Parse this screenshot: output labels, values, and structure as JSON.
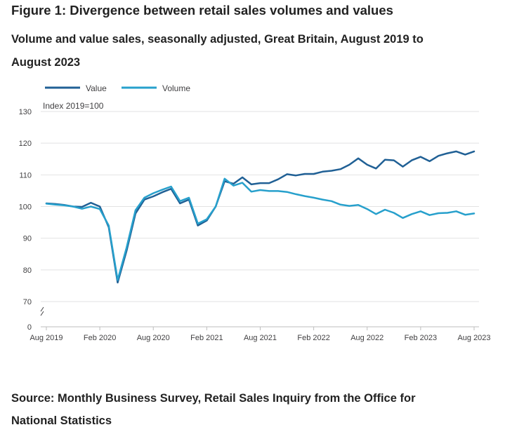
{
  "figure": {
    "title": "Figure 1: Divergence between retail sales volumes and values",
    "subtitle": "Volume and value sales, seasonally adjusted, Great Britain, August 2019 to August 2023",
    "source": "Source: Monthly Business Survey, Retail Sales Inquiry from the Office for National Statistics"
  },
  "chart_data": {
    "type": "line",
    "title": "Figure 1: Divergence between retail sales volumes and values",
    "subtitle": "Volume and value sales, seasonally adjusted, Great Britain, August 2019 to August 2023",
    "ylabel": "Index 2019=100",
    "ylim": [
      0,
      130
    ],
    "y_axis_break": [
      0,
      65
    ],
    "y_ticks": [
      0,
      70,
      80,
      90,
      100,
      110,
      120,
      130
    ],
    "grid": true,
    "legend_position": "top-left",
    "x": [
      "Aug 2019",
      "Sep 2019",
      "Oct 2019",
      "Nov 2019",
      "Dec 2019",
      "Jan 2020",
      "Feb 2020",
      "Mar 2020",
      "Apr 2020",
      "May 2020",
      "Jun 2020",
      "Jul 2020",
      "Aug 2020",
      "Sep 2020",
      "Oct 2020",
      "Nov 2020",
      "Dec 2020",
      "Jan 2021",
      "Feb 2021",
      "Mar 2021",
      "Apr 2021",
      "May 2021",
      "Jun 2021",
      "Jul 2021",
      "Aug 2021",
      "Sep 2021",
      "Oct 2021",
      "Nov 2021",
      "Dec 2021",
      "Jan 2022",
      "Feb 2022",
      "Mar 2022",
      "Apr 2022",
      "May 2022",
      "Jun 2022",
      "Jul 2022",
      "Aug 2022",
      "Sep 2022",
      "Oct 2022",
      "Nov 2022",
      "Dec 2022",
      "Jan 2023",
      "Feb 2023",
      "Mar 2023",
      "Apr 2023",
      "May 2023",
      "Jun 2023",
      "Jul 2023",
      "Aug 2023"
    ],
    "x_tick_labels": [
      "Aug 2019",
      "Feb 2020",
      "Aug 2020",
      "Feb 2021",
      "Aug 2021",
      "Feb 2022",
      "Aug 2022",
      "Feb 2023",
      "Aug 2023"
    ],
    "series": [
      {
        "name": "Value",
        "color": "#206095",
        "values": [
          101.0,
          100.8,
          100.5,
          100.0,
          99.9,
          101.2,
          100.0,
          93.5,
          76.0,
          86.0,
          97.8,
          102.2,
          103.2,
          104.5,
          105.6,
          101.0,
          102.2,
          94.0,
          95.6,
          100.0,
          108.0,
          107.2,
          109.2,
          107.0,
          107.4,
          107.4,
          108.6,
          110.2,
          109.8,
          110.3,
          110.3,
          111.0,
          111.3,
          111.8,
          113.2,
          115.2,
          113.2,
          112.0,
          114.8,
          114.6,
          112.6,
          114.6,
          115.7,
          114.3,
          116.0,
          116.8,
          117.4,
          116.4,
          117.4
        ]
      },
      {
        "name": "Volume",
        "color": "#27a0cc",
        "values": [
          100.9,
          100.6,
          100.4,
          100.0,
          99.3,
          100.0,
          99.2,
          94.0,
          76.8,
          87.0,
          98.8,
          102.8,
          104.2,
          105.3,
          106.3,
          101.7,
          102.8,
          94.6,
          96.0,
          100.0,
          108.8,
          106.6,
          107.5,
          104.7,
          105.2,
          104.9,
          104.9,
          104.6,
          103.9,
          103.3,
          102.8,
          102.2,
          101.7,
          100.6,
          100.2,
          100.5,
          99.2,
          97.6,
          99.0,
          98.0,
          96.4,
          97.6,
          98.5,
          97.3,
          97.9,
          98.0,
          98.5,
          97.4,
          97.8
        ]
      }
    ]
  }
}
